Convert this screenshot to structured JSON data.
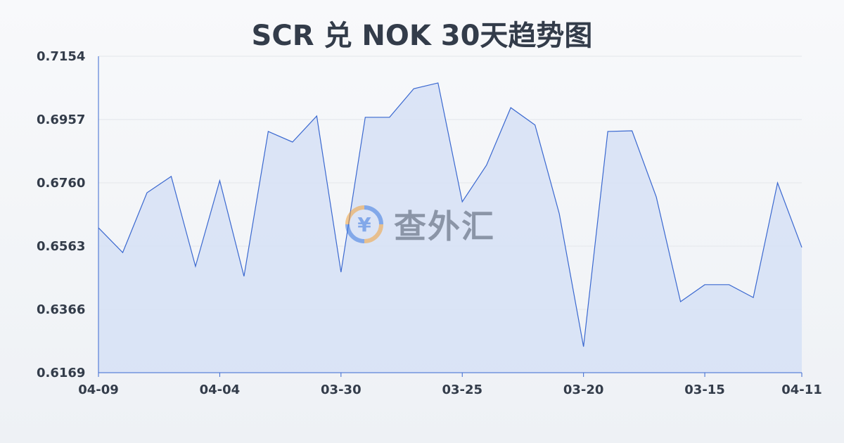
{
  "title": "SCR 兑 NOK 30天趋势图",
  "watermark": {
    "text": "查外汇",
    "icon": "yen-exchange-icon"
  },
  "colors": {
    "line": "#3a68d0",
    "fill": "#d6e1f6",
    "grid": "#e3e6ea",
    "text": "#333c4a"
  },
  "chart_data": {
    "type": "area",
    "title": "SCR 兑 NOK 30天趋势图",
    "xlabel": "",
    "ylabel": "",
    "ylim": [
      0.6169,
      0.7154
    ],
    "yticks": [
      "0.6169",
      "0.6366",
      "0.6563",
      "0.6760",
      "0.6957",
      "0.7154"
    ],
    "xticks": [
      {
        "index": 0,
        "label": "04-09"
      },
      {
        "index": 5,
        "label": "04-04"
      },
      {
        "index": 10,
        "label": "03-30"
      },
      {
        "index": 15,
        "label": "03-25"
      },
      {
        "index": 20,
        "label": "03-20"
      },
      {
        "index": 25,
        "label": "03-15"
      },
      {
        "index": 29,
        "label": "04-11"
      }
    ],
    "grid": true,
    "values": [
      0.662,
      0.6543,
      0.6729,
      0.678,
      0.65,
      0.6767,
      0.6469,
      0.692,
      0.6887,
      0.6968,
      0.6482,
      0.6964,
      0.6964,
      0.7053,
      0.7071,
      0.6701,
      0.6815,
      0.6994,
      0.694,
      0.6664,
      0.625,
      0.692,
      0.6922,
      0.6716,
      0.639,
      0.6443,
      0.6443,
      0.6403,
      0.676,
      0.6559
    ]
  }
}
